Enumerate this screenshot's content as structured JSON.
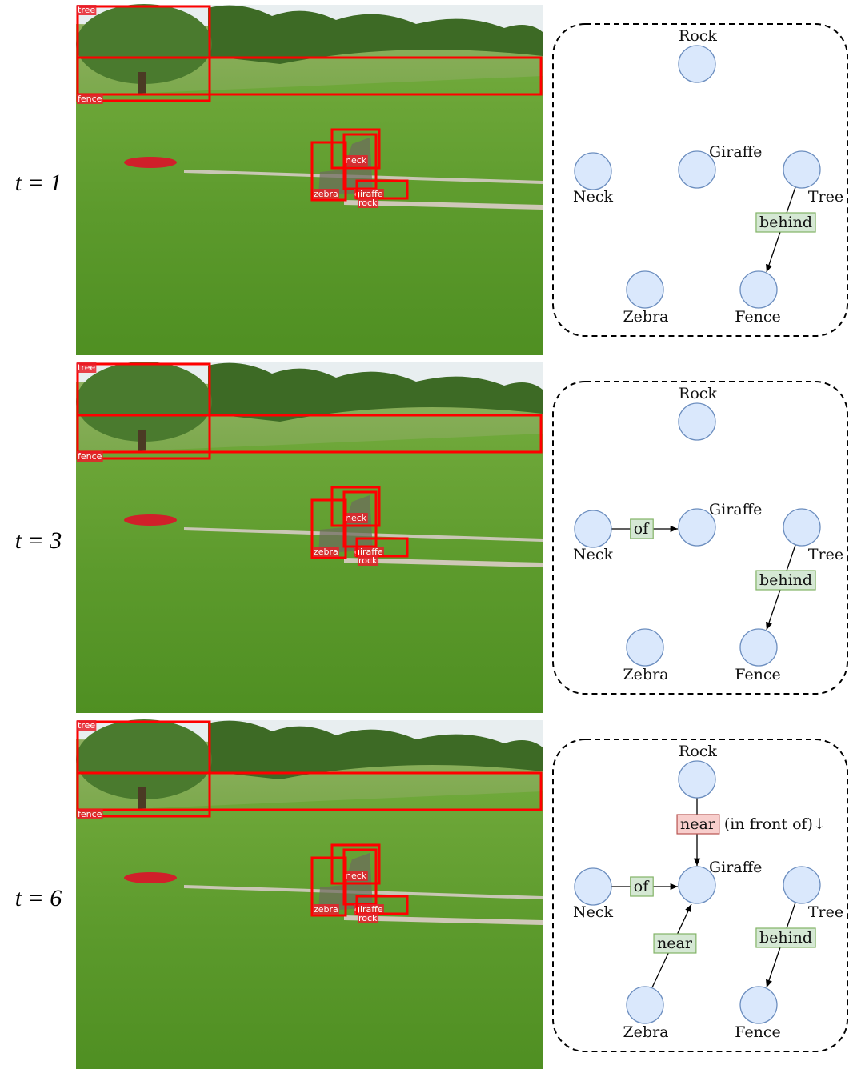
{
  "panels": [
    {
      "time": "t = 1",
      "boxes": [
        "tree",
        "fence",
        "neck",
        "zebra",
        "giraffe",
        "rock"
      ],
      "nodes": [
        "Rock",
        "Giraffe",
        "Neck",
        "Tree",
        "Zebra",
        "Fence"
      ],
      "edges": [
        {
          "label": "behind"
        }
      ]
    },
    {
      "time": "t = 3",
      "boxes": [
        "tree",
        "fence",
        "neck",
        "zebra",
        "giraffe",
        "rock"
      ],
      "nodes": [
        "Rock",
        "Giraffe",
        "Neck",
        "Tree",
        "Zebra",
        "Fence"
      ],
      "edges": [
        {
          "label": "of"
        },
        {
          "label": "behind"
        }
      ]
    },
    {
      "time": "t = 6",
      "boxes": [
        "tree",
        "fence",
        "neck",
        "zebra",
        "giraffe",
        "rock"
      ],
      "nodes": [
        "Rock",
        "Giraffe",
        "Neck",
        "Tree",
        "Zebra",
        "Fence"
      ],
      "edges": [
        {
          "label": "near",
          "note": "(in front of)↓"
        },
        {
          "label": "of"
        },
        {
          "label": "near"
        },
        {
          "label": "behind"
        }
      ]
    }
  ]
}
